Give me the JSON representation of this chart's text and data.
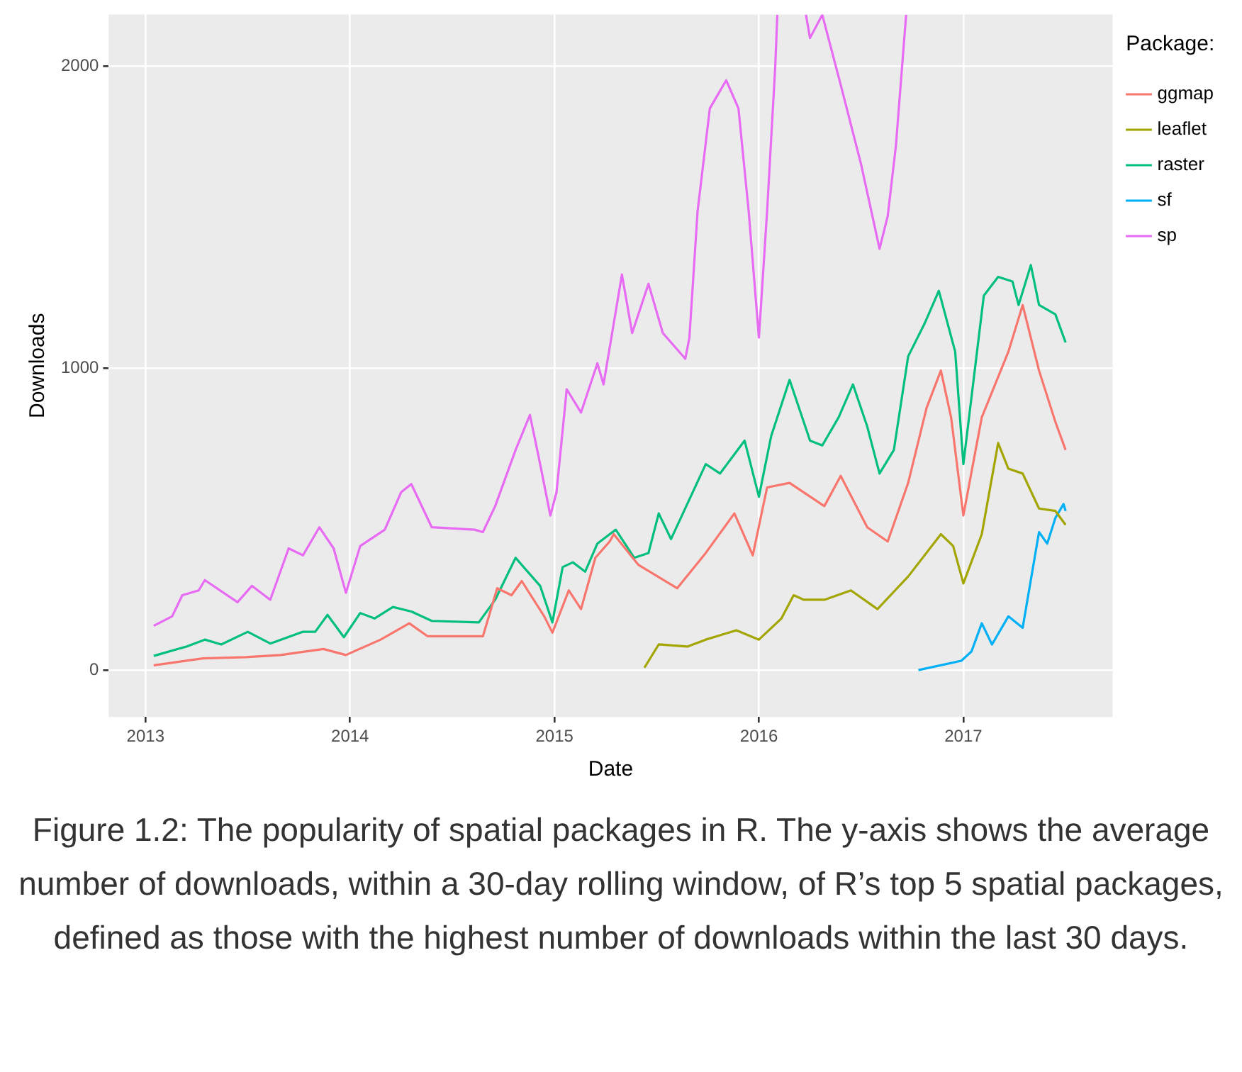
{
  "chart_data": {
    "type": "line",
    "xlabel": "Date",
    "ylabel": "Downloads",
    "legend_title": "Package:",
    "legend": "right",
    "grid": true,
    "xlim": [
      2012.82,
      2017.73
    ],
    "ylim": [
      -155,
      2171
    ],
    "xticks": [
      2013,
      2014,
      2015,
      2016,
      2017
    ],
    "yticks": [
      0,
      1000,
      2000
    ],
    "annotations": [
      "Figure 1.2: The popularity of spatial packages in R. The y-axis shows the average number of downloads, within a 30-day rolling window, of R’s top 5 spatial packages, defined as those with the highest number of downloads within the last 30 days."
    ],
    "series": [
      {
        "name": "ggmap",
        "color": "#f8766d",
        "x": [
          2013.04,
          2013.28,
          2013.49,
          2013.66,
          2013.87,
          2013.98,
          2014.15,
          2014.29,
          2014.38,
          2014.65,
          2014.72,
          2014.79,
          2014.84,
          2014.95,
          2014.99,
          2015.07,
          2015.13,
          2015.2,
          2015.27,
          2015.29,
          2015.41,
          2015.6,
          2015.74,
          2015.88,
          2015.97,
          2016.04,
          2016.15,
          2016.32,
          2016.4,
          2016.53,
          2016.63,
          2016.73,
          2016.82,
          2016.89,
          2016.94,
          2017.0,
          2017.09,
          2017.22,
          2017.29,
          2017.37,
          2017.45,
          2017.5
        ],
        "values": [
          16,
          39,
          43,
          50,
          70,
          50,
          101,
          155,
          112,
          112,
          271,
          248,
          295,
          178,
          124,
          264,
          202,
          372,
          426,
          450,
          349,
          271,
          388,
          519,
          380,
          605,
          620,
          543,
          643,
          473,
          426,
          620,
          868,
          992,
          837,
          512,
          837,
          1054,
          1209,
          992,
          822,
          729
        ]
      },
      {
        "name": "leaflet",
        "color": "#a3a500",
        "x": [
          2015.44,
          2015.51,
          2015.65,
          2015.74,
          2015.89,
          2016.0,
          2016.11,
          2016.17,
          2016.22,
          2016.32,
          2016.45,
          2016.58,
          2016.73,
          2016.89,
          2016.95,
          2017.0,
          2017.09,
          2017.17,
          2017.22,
          2017.29,
          2017.37,
          2017.45,
          2017.5
        ],
        "values": [
          8,
          85,
          78,
          101,
          132,
          101,
          171,
          248,
          233,
          233,
          264,
          202,
          310,
          450,
          411,
          287,
          450,
          752,
          667,
          651,
          535,
          527,
          481
        ]
      },
      {
        "name": "raster",
        "color": "#00bf7d",
        "x": [
          2013.04,
          2013.2,
          2013.29,
          2013.37,
          2013.5,
          2013.61,
          2013.77,
          2013.83,
          2013.89,
          2013.97,
          2014.05,
          2014.12,
          2014.21,
          2014.3,
          2014.4,
          2014.63,
          2014.71,
          2014.81,
          2014.86,
          2014.93,
          2014.99,
          2015.04,
          2015.09,
          2015.15,
          2015.21,
          2015.27,
          2015.3,
          2015.39,
          2015.46,
          2015.51,
          2015.57,
          2015.74,
          2015.81,
          2015.93,
          2016.0,
          2016.06,
          2016.15,
          2016.25,
          2016.31,
          2016.39,
          2016.46,
          2016.53,
          2016.59,
          2016.66,
          2016.73,
          2016.81,
          2016.88,
          2016.96,
          2017.0,
          2017.1,
          2017.17,
          2017.24,
          2017.27,
          2017.33,
          2017.37,
          2017.45,
          2017.5
        ],
        "values": [
          47,
          78,
          101,
          85,
          127,
          88,
          127,
          127,
          183,
          109,
          189,
          171,
          209,
          194,
          163,
          158,
          233,
          372,
          333,
          279,
          158,
          341,
          357,
          326,
          419,
          450,
          465,
          372,
          388,
          519,
          434,
          682,
          651,
          760,
          574,
          775,
          961,
          760,
          744,
          837,
          946,
          806,
          651,
          729,
          1039,
          1147,
          1256,
          1054,
          682,
          1240,
          1302,
          1287,
          1209,
          1341,
          1209,
          1178,
          1085
        ]
      },
      {
        "name": "sf",
        "color": "#00b0f6",
        "x": [
          2016.78,
          2016.99,
          2017.04,
          2017.09,
          2017.14,
          2017.22,
          2017.29,
          2017.37,
          2017.41,
          2017.45,
          2017.49,
          2017.5
        ],
        "values": [
          0,
          31,
          62,
          155,
          85,
          178,
          140,
          457,
          419,
          504,
          550,
          527
        ]
      },
      {
        "name": "sp",
        "color": "#e76bf3",
        "x": [
          2013.04,
          2013.13,
          2013.18,
          2013.26,
          2013.29,
          2013.45,
          2013.52,
          2013.61,
          2013.7,
          2013.77,
          2013.85,
          2013.92,
          2013.98,
          2014.05,
          2014.17,
          2014.25,
          2014.3,
          2014.4,
          2014.61,
          2014.65,
          2014.71,
          2014.81,
          2014.88,
          2014.93,
          2014.98,
          2015.01,
          2015.06,
          2015.13,
          2015.21,
          2015.24,
          2015.33,
          2015.38,
          2015.46,
          2015.53,
          2015.64,
          2015.66,
          2015.7,
          2015.76,
          2015.84,
          2015.9,
          2015.95,
          2016.0,
          2016.04,
          2016.08,
          2016.09,
          2016.16,
          2016.23,
          2016.25,
          2016.31,
          2016.4,
          2016.5,
          2016.59,
          2016.63,
          2016.67,
          2016.72
        ],
        "values": [
          147,
          178,
          248,
          264,
          298,
          225,
          279,
          233,
          403,
          380,
          473,
          403,
          256,
          411,
          465,
          589,
          616,
          473,
          465,
          457,
          543,
          729,
          845,
          682,
          512,
          589,
          930,
          853,
          1016,
          946,
          1310,
          1116,
          1279,
          1116,
          1031,
          1101,
          1519,
          1860,
          1953,
          1860,
          1519,
          1101,
          1519,
          2000,
          2170,
          null,
          2170,
          2093,
          2170,
          1938,
          1674,
          1395,
          1504,
          1736,
          2170
        ]
      }
    ]
  }
}
